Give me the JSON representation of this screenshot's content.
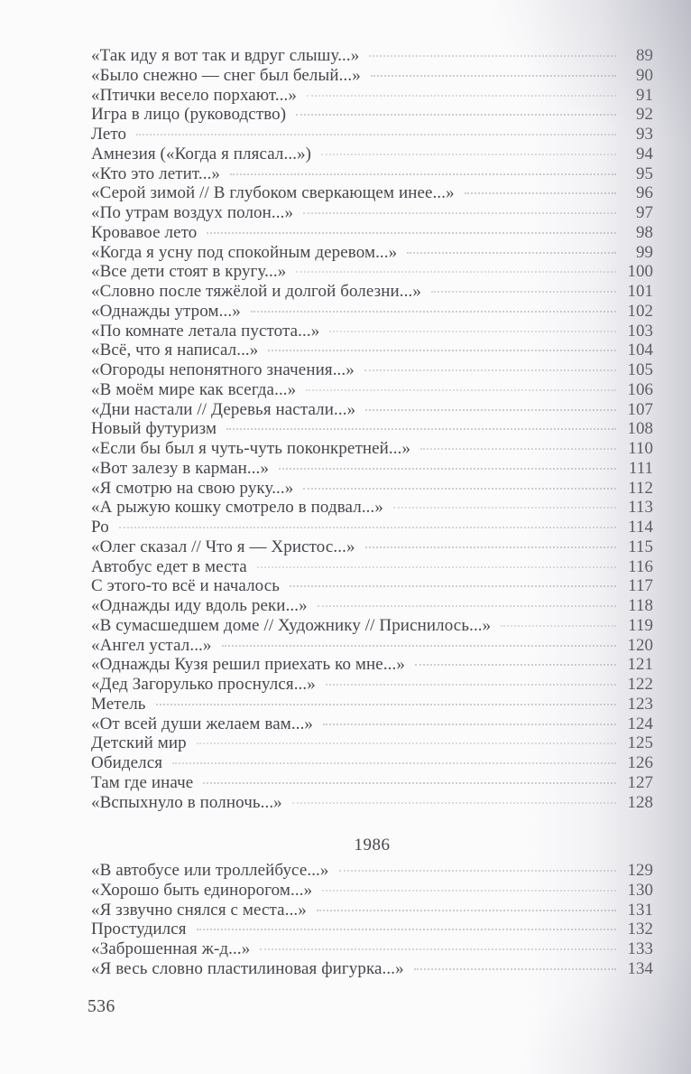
{
  "colors": {
    "ink": "#46464c",
    "leader": "#bdbdc6",
    "page_background": "#fbfbfc"
  },
  "footer": {
    "page_number": "536"
  },
  "toc": {
    "sections": [
      {
        "heading": null,
        "entries": [
          {
            "title": "«Так иду я вот так и вдруг слышу...»",
            "page": "89"
          },
          {
            "title": "«Было снежно — снег был белый...»",
            "page": "90"
          },
          {
            "title": "«Птички весело порхают...»",
            "page": "91"
          },
          {
            "title": "Игра в лицо (руководство)",
            "page": "92"
          },
          {
            "title": "Лето",
            "page": "93"
          },
          {
            "title": "Амнезия («Когда я плясал...»)",
            "page": "94"
          },
          {
            "title": "«Кто это летит...»",
            "page": "95"
          },
          {
            "title": "«Серой зимой // В глубоком сверкающем инее...»",
            "page": "96"
          },
          {
            "title": "«По утрам воздух полон...»",
            "page": "97"
          },
          {
            "title": "Кровавое лето",
            "page": "98"
          },
          {
            "title": "«Когда я усну под спокойным деревом...»",
            "page": "99"
          },
          {
            "title": "«Все дети стоят в кругу...»",
            "page": "100"
          },
          {
            "title": "«Словно после тяжёлой и долгой болезни...»",
            "page": "101"
          },
          {
            "title": "«Однажды утром...»",
            "page": "102"
          },
          {
            "title": "«По комнате летала пустота...»",
            "page": "103"
          },
          {
            "title": "«Всё, что я написал...»",
            "page": "104"
          },
          {
            "title": "«Огороды непонятного значения...»",
            "page": "105"
          },
          {
            "title": "«В моём мире как всегда...»",
            "page": "106"
          },
          {
            "title": "«Дни настали // Деревья настали...»",
            "page": "107"
          },
          {
            "title": "Новый футуризм",
            "page": "108"
          },
          {
            "title": "«Если бы был я чуть-чуть поконкретней...»",
            "page": "110"
          },
          {
            "title": "«Вот залезу в карман...»",
            "page": "111"
          },
          {
            "title": "«Я смотрю на свою руку...»",
            "page": "112"
          },
          {
            "title": "«А рыжую кошку смотрело в подвал...»",
            "page": "113"
          },
          {
            "title": "Ро",
            "page": "114"
          },
          {
            "title": "«Олег сказал // Что я — Христос...»",
            "page": "115"
          },
          {
            "title": "Автобус едет в места",
            "page": "116"
          },
          {
            "title": "С этого-то всё и началось",
            "page": "117"
          },
          {
            "title": "«Однажды иду вдоль реки...»",
            "page": "118"
          },
          {
            "title": "«В сумасшедшем доме // Художнику // Приснилось...»",
            "page": "119"
          },
          {
            "title": "«Ангел устал...»",
            "page": "120"
          },
          {
            "title": "«Однажды Кузя решил приехать ко мне...»",
            "page": "121"
          },
          {
            "title": "«Дед Загорулько проснулся...»",
            "page": "122"
          },
          {
            "title": "Метель",
            "page": "123"
          },
          {
            "title": "«От всей души желаем вам...»",
            "page": "124"
          },
          {
            "title": "Детский мир",
            "page": "125"
          },
          {
            "title": "Обиделся",
            "page": "126"
          },
          {
            "title": "Там где иначе",
            "page": "127"
          },
          {
            "title": "«Вспыхнуло в полночь...»",
            "page": "128"
          }
        ]
      },
      {
        "heading": "1986",
        "entries": [
          {
            "title": "«В автобусе или троллейбусе...»",
            "page": "129"
          },
          {
            "title": "«Хорошо быть единорогом...»",
            "page": "130"
          },
          {
            "title": "«Я ззвучно снялся с места...»",
            "page": "131"
          },
          {
            "title": "Простудился",
            "page": "132"
          },
          {
            "title": "«Заброшенная ж-д...»",
            "page": "133"
          },
          {
            "title": "«Я весь словно пластилиновая фигурка...»",
            "page": "134"
          }
        ]
      }
    ]
  }
}
